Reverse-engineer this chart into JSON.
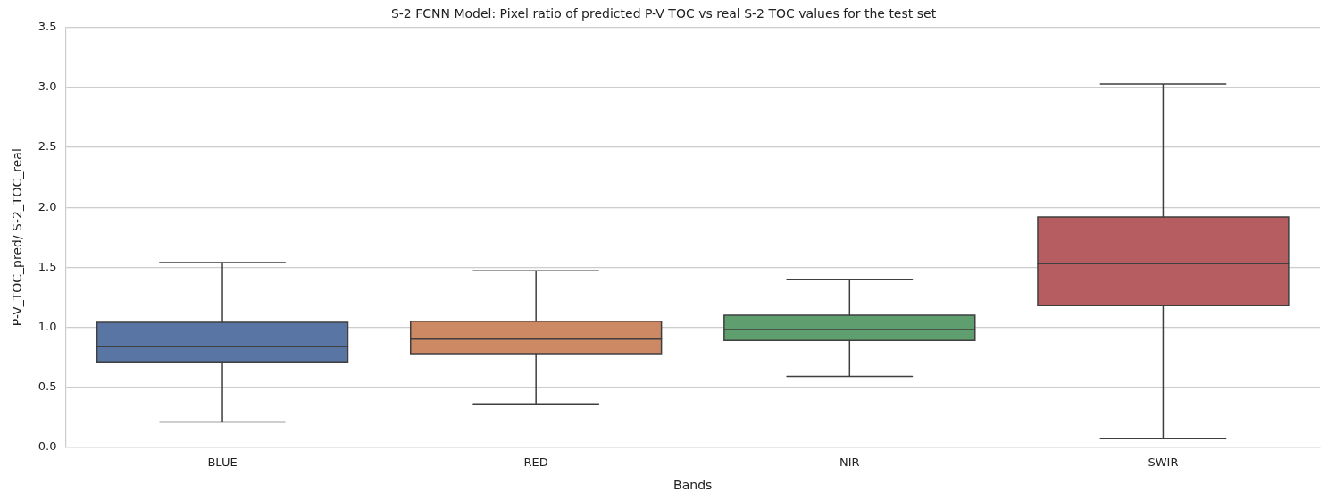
{
  "chart_data": {
    "type": "box",
    "title": "S-2 FCNN Model: Pixel ratio of predicted P-V TOC vs real S-2 TOC values for the test set",
    "xlabel": "Bands",
    "ylabel": "P-V_TOC_pred/ S-2_TOC_real",
    "categories": [
      "BLUE",
      "RED",
      "NIR",
      "SWIR"
    ],
    "colors": [
      "#5975a4",
      "#cc8963",
      "#5f9e6e",
      "#b55d60"
    ],
    "boxes": [
      {
        "low": 0.21,
        "q1": 0.71,
        "median": 0.84,
        "q3": 1.04,
        "high": 1.54
      },
      {
        "low": 0.36,
        "q1": 0.78,
        "median": 0.9,
        "q3": 1.05,
        "high": 1.47
      },
      {
        "low": 0.59,
        "q1": 0.89,
        "median": 0.98,
        "q3": 1.1,
        "high": 1.4
      },
      {
        "low": 0.07,
        "q1": 1.18,
        "median": 1.53,
        "q3": 1.92,
        "high": 3.03
      }
    ],
    "ylim": [
      0,
      3.5
    ],
    "yticks": [
      {
        "value": 0,
        "label": "0.0"
      },
      0.5,
      {
        "value": 1,
        "label": "1.0"
      },
      1.5,
      {
        "value": 2,
        "label": "2.0"
      },
      2.5,
      {
        "value": 3,
        "label": "3.0"
      },
      3.5
    ],
    "grid": "y",
    "legend": false
  }
}
